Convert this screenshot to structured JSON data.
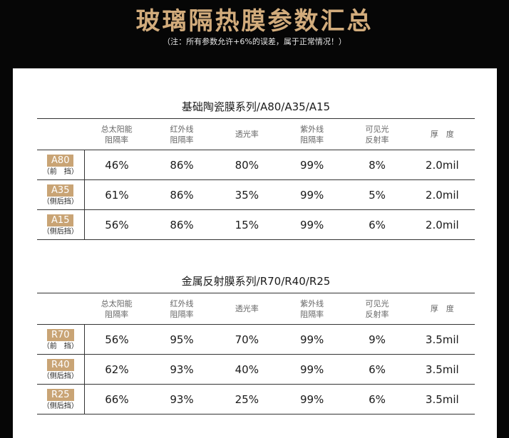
{
  "header": {
    "title": "玻璃隔热膜参数汇总",
    "note": "（注：所有参数允许+6%的误差，属于正常情况！）"
  },
  "columns": [
    "总太阳能\n阻隔率",
    "红外线\n阻隔率",
    "透光率",
    "紫外线\n阻隔率",
    "可见光\n反射率",
    "厚　度"
  ],
  "sections": [
    {
      "title": "基础陶瓷膜系列/A80/A35/A15",
      "rows": [
        {
          "model": "A80",
          "position": "（前　挡）",
          "values": [
            "46%",
            "86%",
            "80%",
            "99%",
            "8%",
            "2.0mil"
          ]
        },
        {
          "model": "A35",
          "position": "（侧后挡）",
          "values": [
            "61%",
            "86%",
            "35%",
            "99%",
            "5%",
            "2.0mil"
          ]
        },
        {
          "model": "A15",
          "position": "（侧后挡）",
          "values": [
            "56%",
            "86%",
            "15%",
            "99%",
            "6%",
            "2.0mil"
          ]
        }
      ]
    },
    {
      "title": "金属反射膜系列/R70/R40/R25",
      "rows": [
        {
          "model": "R70",
          "position": "（前　挡）",
          "values": [
            "56%",
            "95%",
            "70%",
            "99%",
            "9%",
            "3.5mil"
          ]
        },
        {
          "model": "R40",
          "position": "（侧后挡）",
          "values": [
            "62%",
            "93%",
            "40%",
            "99%",
            "6%",
            "3.5mil"
          ]
        },
        {
          "model": "R25",
          "position": "（侧后挡）",
          "values": [
            "66%",
            "93%",
            "25%",
            "99%",
            "6%",
            "3.5mil"
          ]
        }
      ]
    }
  ]
}
